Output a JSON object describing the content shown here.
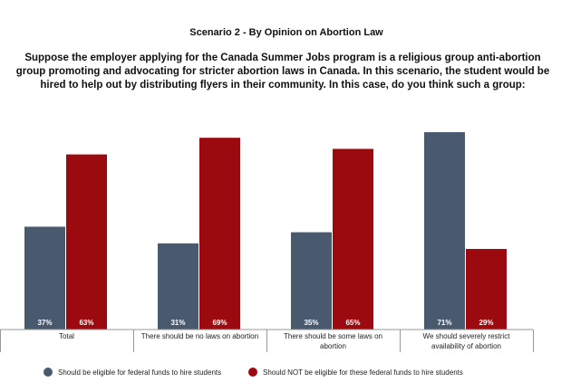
{
  "chart_data": {
    "type": "bar",
    "title": "Scenario 2 - By Opinion on Abortion Law",
    "subtitle_lines": [
      "Suppose the employer applying for the Canada Summer Jobs program is a religious group anti-abortion",
      "group promoting and advocating for stricter abortion laws in Canada. In this scenario, the student would be",
      "hired to help out by distributing flyers in their community. In this case, do you think such a group:"
    ],
    "categories": [
      [
        "Total"
      ],
      [
        "There should be no laws on abortion"
      ],
      [
        "There should be some laws on",
        "abortion"
      ],
      [
        "We should severely restrict",
        "availability of abortion"
      ]
    ],
    "series": [
      {
        "name": "Should be eligible for federal funds to hire students",
        "color": "#4a5a6e",
        "values": [
          37,
          31,
          35,
          71
        ]
      },
      {
        "name": "Should NOT be eligible for these federal funds to hire students",
        "color": "#9b0a0f",
        "values": [
          63,
          69,
          65,
          29
        ]
      }
    ],
    "value_suffix": "%",
    "ylim": [
      0,
      75
    ],
    "grid": false,
    "legend_position": "bottom"
  }
}
